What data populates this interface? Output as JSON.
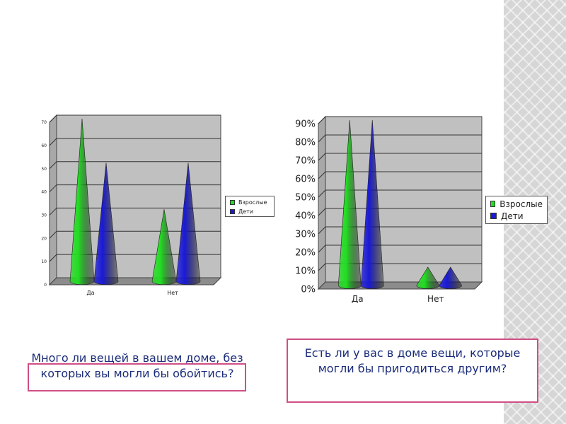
{
  "colors": {
    "adults": "#22dd22",
    "children": "#1a1ad6",
    "accent_border": "#cf4f86",
    "caption_text": "#1b2c7a",
    "plot_bg": "#c0c0c0",
    "floor": "#8c8c8c"
  },
  "captions": {
    "left": "Много ли вещей в вашем доме, без которых вы могли бы обойтись?",
    "right": "Есть ли у вас в доме вещи, которые могли бы пригодиться другим?"
  },
  "chart_data": [
    {
      "type": "bar",
      "bar_shape": "cone",
      "categories": [
        "Да",
        "Нет"
      ],
      "series": [
        {
          "name": "Взрослые",
          "values": [
            70,
            31
          ]
        },
        {
          "name": "Дети",
          "values": [
            51,
            51
          ]
        }
      ],
      "ylim": [
        0,
        70
      ],
      "y_ticks": [
        "0",
        "10",
        "20",
        "30",
        "40",
        "50",
        "60",
        "70"
      ],
      "grid": true,
      "legend_position": "right"
    },
    {
      "type": "bar",
      "bar_shape": "cone",
      "categories": [
        "Да",
        "Нет"
      ],
      "series": [
        {
          "name": "Взрослые",
          "values": [
            0.9,
            0.1
          ]
        },
        {
          "name": "Дети",
          "values": [
            0.9,
            0.1
          ]
        }
      ],
      "ylim": [
        0,
        0.9
      ],
      "y_ticks": [
        "0%",
        "10%",
        "20%",
        "30%",
        "40%",
        "50%",
        "60%",
        "70%",
        "80%",
        "90%"
      ],
      "grid": true,
      "legend_position": "right"
    }
  ]
}
